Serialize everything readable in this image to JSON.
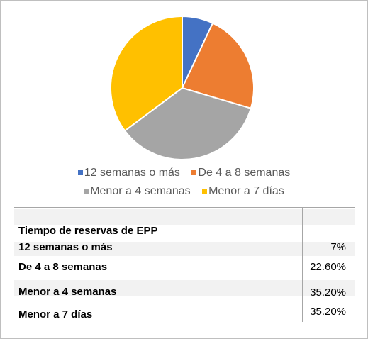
{
  "chart_data": {
    "type": "pie",
    "categories": [
      "12 semanas o más",
      "De 4 a 8 semanas",
      "Menor a 4 semanas",
      "Menor a 7 días"
    ],
    "values": [
      7,
      22.6,
      35.2,
      35.2
    ],
    "colors": [
      "#4472c4",
      "#ed7d31",
      "#a5a5a5",
      "#ffc000"
    ],
    "legend_position": "bottom"
  },
  "table": {
    "header": "Tiempo de reservas de EPP",
    "rows": [
      {
        "label": "12 semanas o más",
        "value": "7%"
      },
      {
        "label": "De 4 a 8 semanas",
        "value": "22.60%"
      },
      {
        "label": "Menor a 4 semanas",
        "value": "35.20%"
      },
      {
        "label": "Menor a 7 días",
        "value": "35.20%"
      }
    ]
  }
}
